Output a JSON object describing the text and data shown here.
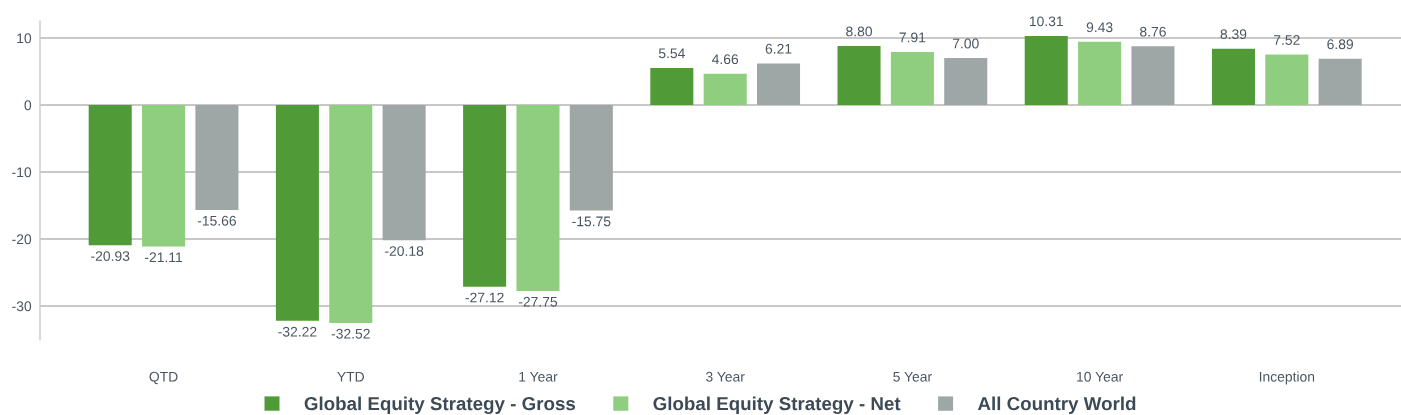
{
  "chart_data": {
    "type": "bar",
    "categories": [
      "QTD",
      "YTD",
      "1 Year",
      "3 Year",
      "5 Year",
      "10 Year",
      "Inception"
    ],
    "series": [
      {
        "name": "Global Equity Strategy - Gross",
        "color": "#509b38",
        "values": [
          -20.93,
          -32.22,
          -27.12,
          5.54,
          8.8,
          10.31,
          8.39
        ],
        "value_labels": [
          "-20.93",
          "-32.22",
          "-27.12",
          "5.54",
          "8.80",
          "10.31",
          "8.39"
        ]
      },
      {
        "name": "Global Equity Strategy - Net",
        "color": "#8fce7e",
        "values": [
          -21.11,
          -32.52,
          -27.75,
          4.66,
          7.91,
          9.43,
          7.52
        ],
        "value_labels": [
          "-21.11",
          "-32.52",
          "-27.75",
          "4.66",
          "7.91",
          "9.43",
          "7.52"
        ]
      },
      {
        "name": "All Country World",
        "color": "#9fa6a6",
        "values": [
          -15.66,
          -20.18,
          -15.75,
          6.21,
          7.0,
          8.76,
          6.89
        ],
        "value_labels": [
          "-15.66",
          "-20.18",
          "-15.75",
          "6.21",
          "7.00",
          "8.76",
          "6.89"
        ]
      }
    ],
    "ylim": [
      -35,
      12.5
    ],
    "yticks": [
      10,
      0,
      -10,
      -20,
      -30
    ],
    "grid": "y",
    "legend": "bottom"
  }
}
